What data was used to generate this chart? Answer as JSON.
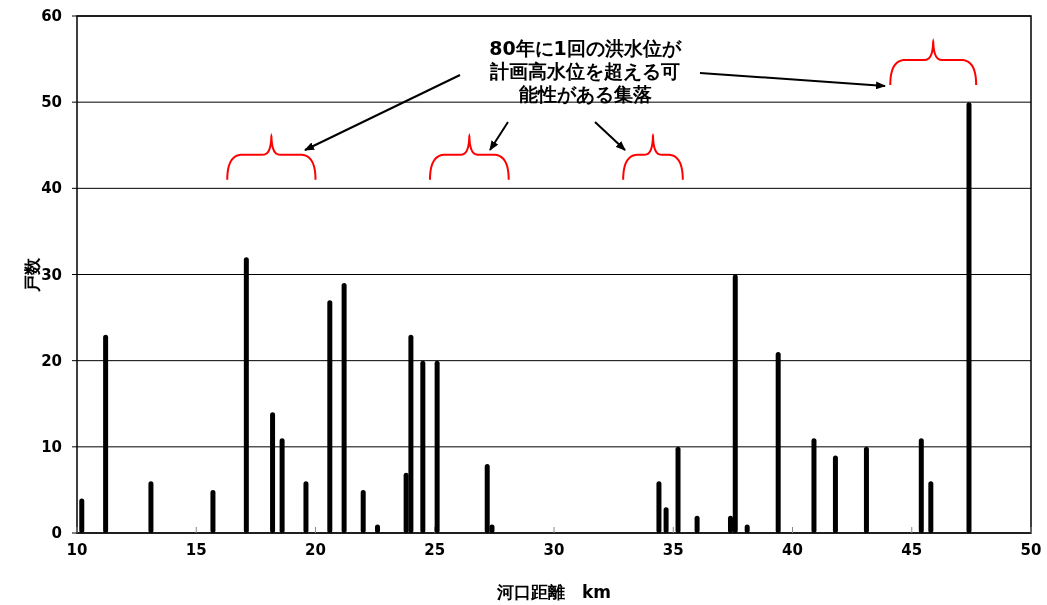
{
  "chart_data": {
    "type": "bar",
    "xlabel": "河口距離　km",
    "ylabel": "戸数",
    "x": [
      10.2,
      11.2,
      13.1,
      15.7,
      17.1,
      18.2,
      18.6,
      19.6,
      20.6,
      21.2,
      22.0,
      22.6,
      23.8,
      24.0,
      24.5,
      25.1,
      27.2,
      27.4,
      34.4,
      34.7,
      35.2,
      36.0,
      37.4,
      37.6,
      38.1,
      39.4,
      40.9,
      41.8,
      43.1,
      45.4,
      45.8,
      47.4
    ],
    "values": [
      4,
      23,
      6,
      5,
      32,
      14,
      11,
      6,
      27,
      29,
      5,
      1,
      7,
      23,
      20,
      20,
      8,
      1,
      6,
      3,
      10,
      2,
      2,
      30,
      1,
      21,
      11,
      9,
      10,
      11,
      6,
      50
    ],
    "color": "#000000",
    "xlim": [
      10,
      50
    ],
    "xticks": [
      10,
      15,
      20,
      25,
      30,
      35,
      40,
      45,
      50
    ],
    "ylim": [
      0,
      60
    ],
    "yticks": [
      0,
      10,
      20,
      30,
      40,
      50,
      60
    ],
    "grid": "y",
    "annotations": [
      "80年に1回の洪水位が計画高水位を超える可能性がある集落"
    ]
  }
}
